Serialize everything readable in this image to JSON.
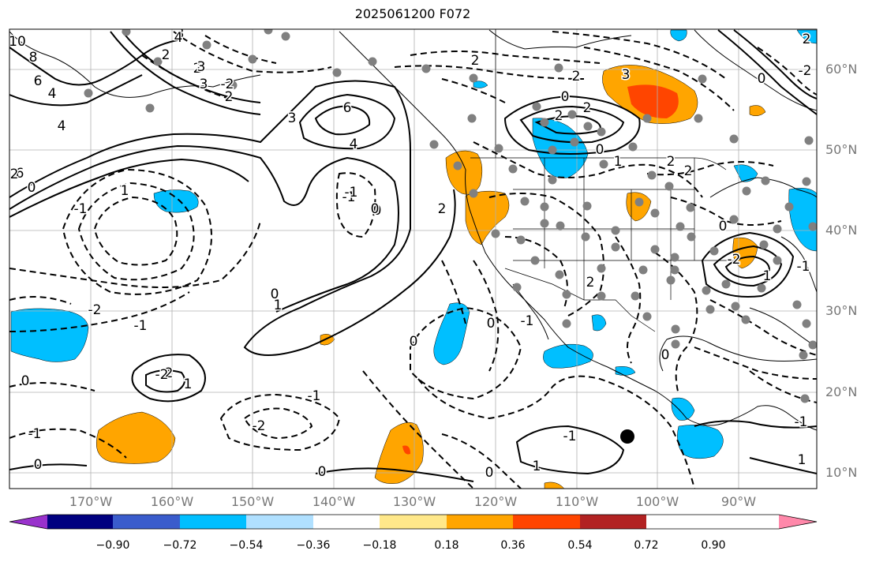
{
  "title": "2025061200 F072",
  "lat_labels": [
    "60°N",
    "50°N",
    "40°N",
    "30°N",
    "20°N",
    "10°N"
  ],
  "lon_labels": [
    "170°W",
    "160°W",
    "150°W",
    "140°W",
    "130°W",
    "120°W",
    "110°W",
    "100°W",
    "90°W"
  ],
  "colorbar": {
    "colors": [
      "#9932cc",
      "#000080",
      "#3a5ccc",
      "#00bfff",
      "#b0e0ff",
      "#ffffff",
      "#ffe88a",
      "#ffa500",
      "#ff4500",
      "#b22222",
      "#ff88aa"
    ],
    "tick_labels": [
      "−0.90",
      "−0.72",
      "−0.54",
      "−0.36",
      "−0.18",
      "0.18",
      "0.36",
      "0.54",
      "0.72",
      "0.90"
    ]
  },
  "contour_labels": [
    "10",
    "8",
    "6",
    "4",
    "4",
    "6",
    "6",
    "4",
    "3",
    "2",
    "2",
    "3",
    "3",
    "2",
    "0",
    "2",
    "2",
    "3",
    "2",
    "2",
    "1",
    "2",
    "2",
    "0",
    "0",
    "-1",
    "0",
    "1",
    "0",
    "-2",
    "-1",
    "2",
    "2",
    "-2",
    "1",
    "-1",
    "-2",
    "0",
    "-1",
    "0",
    "0",
    "1",
    "0",
    "-1",
    "0",
    "1",
    "-1",
    "2",
    "-1",
    "0",
    "0",
    "2",
    "0",
    "-1",
    "1",
    "-2",
    "4",
    "3",
    "0",
    "-2",
    "2",
    "-2",
    "-1",
    "0",
    "1",
    "-1"
  ],
  "legend": {
    "shaded_field": "filled anomaly",
    "dot_color": "#808080"
  }
}
